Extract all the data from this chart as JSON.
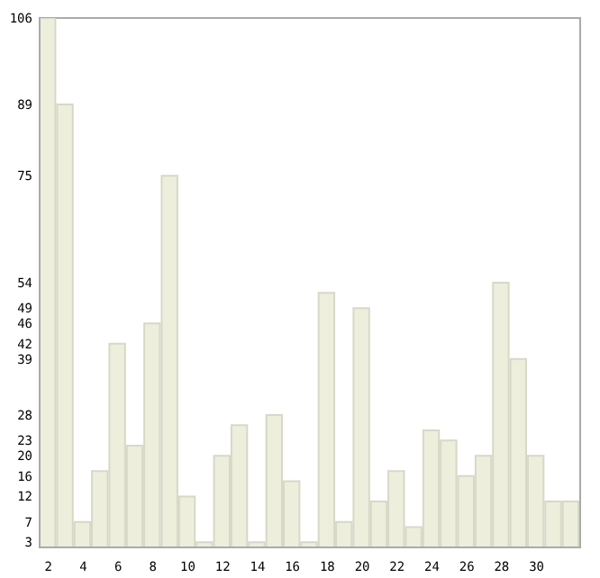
{
  "chart_data": {
    "type": "bar",
    "x": [
      2,
      3,
      4,
      5,
      6,
      7,
      8,
      9,
      10,
      11,
      12,
      13,
      14,
      15,
      16,
      17,
      18,
      19,
      20,
      21,
      22,
      23,
      24,
      25,
      26,
      27,
      28,
      29,
      30,
      31,
      32
    ],
    "values": [
      106,
      89,
      7,
      17,
      42,
      22,
      46,
      75,
      12,
      3,
      20,
      26,
      3,
      28,
      15,
      3,
      52,
      7,
      49,
      11,
      17,
      6,
      25,
      23,
      16,
      20,
      54,
      39,
      20,
      11,
      11
    ],
    "color": "#eeeedd",
    "xlim": [
      1.5,
      32.5
    ],
    "xticks": [
      2,
      4,
      6,
      8,
      10,
      12,
      14,
      16,
      18,
      20,
      22,
      24,
      26,
      28,
      30
    ],
    "ylim": [
      2,
      106
    ],
    "yticks": [
      3,
      7,
      12,
      16,
      20,
      23,
      28,
      39,
      42,
      46,
      49,
      54,
      75,
      89,
      106
    ]
  }
}
